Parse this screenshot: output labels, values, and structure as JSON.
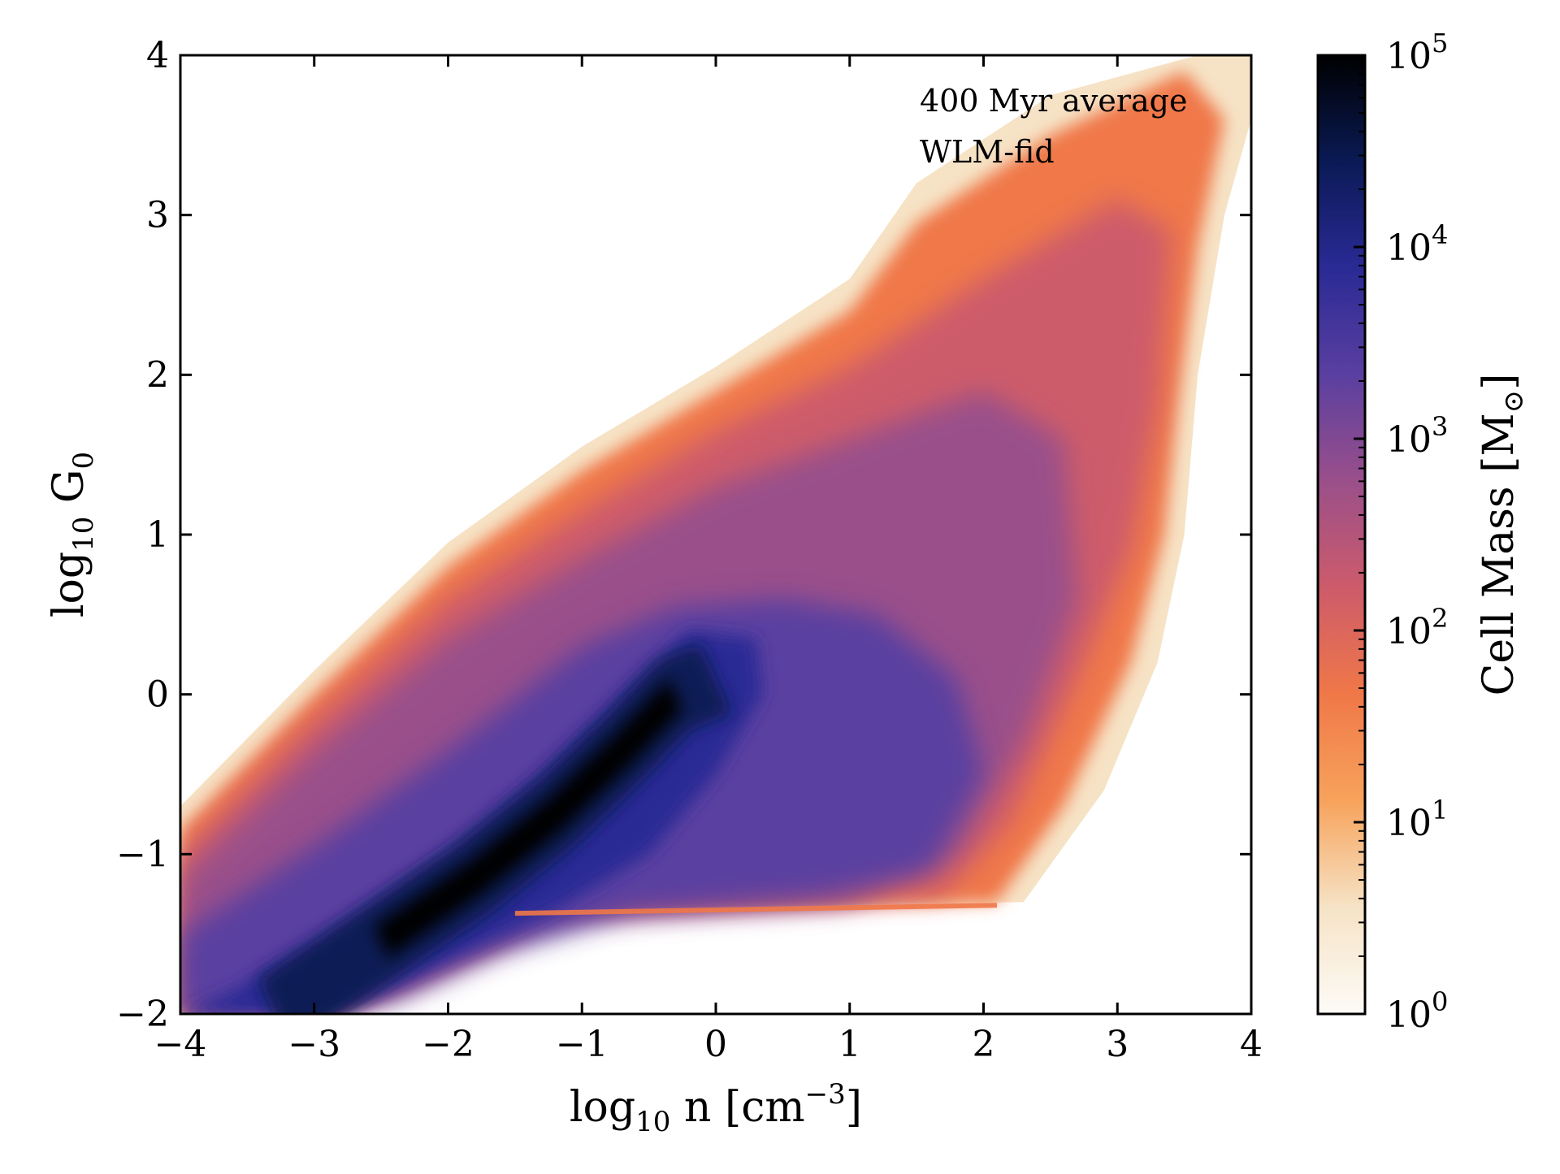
{
  "chart_data": {
    "type": "heatmap",
    "title": "",
    "annotations": [
      "400 Myr average",
      "WLM-fid"
    ],
    "xlabel": {
      "base": "log",
      "sub": "10",
      "main": " n [cm",
      "sup": "−3",
      "tail": "]"
    },
    "ylabel": {
      "base": "log",
      "sub": "10",
      "main": " G",
      "sub2": "0"
    },
    "colorbar_label": {
      "main": "Cell Mass [M",
      "sub": "⊙",
      "tail": "]"
    },
    "xlim": [
      -4,
      4
    ],
    "ylim": [
      -2,
      4
    ],
    "x_ticks": [
      -4,
      -3,
      -2,
      -1,
      0,
      1,
      2,
      3,
      4
    ],
    "x_tick_labels": [
      "−4",
      "−3",
      "−2",
      "−1",
      "0",
      "1",
      "2",
      "3",
      "4"
    ],
    "y_ticks": [
      -2,
      -1,
      0,
      1,
      2,
      3,
      4
    ],
    "y_tick_labels": [
      "−2",
      "−1",
      "0",
      "1",
      "2",
      "3",
      "4"
    ],
    "colorbar": {
      "scale": "log",
      "range": [
        1,
        100000
      ],
      "tick_labels": [
        {
          "base": "10",
          "exp": "0"
        },
        {
          "base": "10",
          "exp": "1"
        },
        {
          "base": "10",
          "exp": "2"
        },
        {
          "base": "10",
          "exp": "3"
        },
        {
          "base": "10",
          "exp": "4"
        },
        {
          "base": "10",
          "exp": "5"
        }
      ],
      "colors": [
        "#fdfbf7",
        "#f6e3c6",
        "#f7a35c",
        "#f07848",
        "#cd5b6a",
        "#9a4f8a",
        "#5a3fa0",
        "#2a2a95",
        "#0a1a55",
        "#000000"
      ]
    },
    "density_structure": {
      "core_ridge": [
        [
          -3.3,
          -2.0
        ],
        [
          -2.5,
          -1.55
        ],
        [
          -1.8,
          -1.15
        ],
        [
          -1.2,
          -0.75
        ],
        [
          -0.7,
          -0.35
        ],
        [
          -0.3,
          0.0
        ],
        [
          0.0,
          0.1
        ]
      ],
      "upper_edge": [
        [
          -4,
          -0.75
        ],
        [
          -3,
          0.15
        ],
        [
          -2,
          0.95
        ],
        [
          -1,
          1.55
        ],
        [
          0,
          2.05
        ],
        [
          1,
          2.6
        ],
        [
          1.5,
          3.2
        ],
        [
          2.5,
          3.75
        ],
        [
          3.6,
          4.0
        ],
        [
          4,
          4.0
        ]
      ],
      "lower_floor_log10_G0": -1.35,
      "floor_x_range": [
        -1.0,
        2.5
      ],
      "right_edge": [
        [
          2.3,
          -1.3
        ],
        [
          2.9,
          -0.6
        ],
        [
          3.3,
          0.2
        ],
        [
          3.5,
          1.0
        ],
        [
          3.6,
          2.0
        ],
        [
          3.8,
          3.0
        ],
        [
          4.0,
          3.6
        ]
      ]
    }
  }
}
